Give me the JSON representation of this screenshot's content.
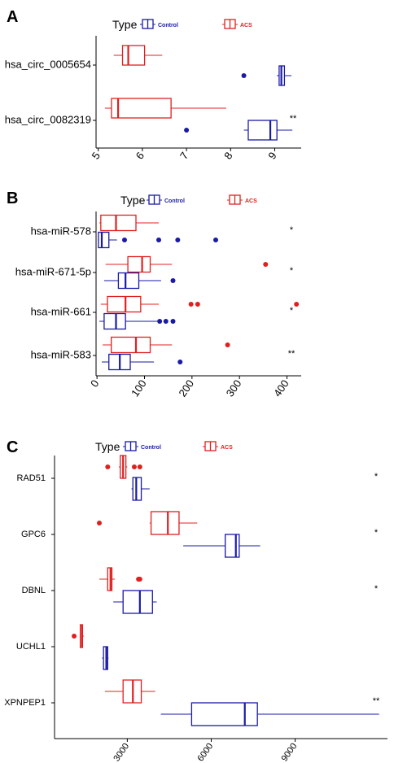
{
  "colors": {
    "control": "#1a1aa6",
    "acs": "#e02020"
  },
  "chart_data": [
    {
      "panel": "A",
      "type": "boxplot",
      "orientation": "horizontal",
      "legend": {
        "title": "Type",
        "entries": [
          "Control",
          "ACS"
        ]
      },
      "xlim": [
        4.95,
        9.6
      ],
      "ticks": [
        5,
        6,
        7,
        8,
        9
      ],
      "tick_labels": [
        "5",
        "6",
        "7",
        "8",
        "9"
      ],
      "categories": [
        {
          "label": "hsa_circ_0005654",
          "sig": "",
          "acs": {
            "whisker_low": 5.35,
            "q1": 5.55,
            "median": 5.68,
            "q3": 6.05,
            "whisker_high": 6.45,
            "outliers": []
          },
          "control": {
            "whisker_low": 9.05,
            "q1": 9.1,
            "median": 9.15,
            "q3": 9.22,
            "whisker_high": 9.38,
            "outliers": [
              8.3
            ]
          }
        },
        {
          "label": "hsa_circ_0082319",
          "sig": "**",
          "acs": {
            "whisker_low": 5.15,
            "q1": 5.3,
            "median": 5.45,
            "q3": 6.65,
            "whisker_high": 7.9,
            "outliers": []
          },
          "control": {
            "whisker_low": 8.3,
            "q1": 8.4,
            "median": 8.9,
            "q3": 9.05,
            "whisker_high": 9.4,
            "outliers": [
              7.0
            ]
          }
        }
      ]
    },
    {
      "panel": "B",
      "type": "boxplot",
      "orientation": "horizontal",
      "legend": {
        "title": "Type",
        "entries": [
          "Control",
          "ACS"
        ]
      },
      "xlim": [
        -2,
        430
      ],
      "ticks": [
        0,
        100,
        200,
        300,
        400
      ],
      "tick_labels": [
        "0",
        "100",
        "200",
        "300",
        "400"
      ],
      "categories": [
        {
          "label": "hsa-miR-578",
          "sig": "*",
          "acs": {
            "whisker_low": 5,
            "q1": 8,
            "median": 40,
            "q3": 82,
            "whisker_high": 130,
            "outliers": []
          },
          "control": {
            "whisker_low": 2,
            "q1": 3,
            "median": 10,
            "q3": 25,
            "whisker_high": 42,
            "outliers": [
              58,
              130,
              170,
              250
            ]
          }
        },
        {
          "label": "hsa-miR-671-5p",
          "sig": "*",
          "acs": {
            "whisker_low": 18,
            "q1": 65,
            "median": 95,
            "q3": 112,
            "whisker_high": 158,
            "outliers": [
              355
            ]
          },
          "control": {
            "whisker_low": 15,
            "q1": 45,
            "median": 60,
            "q3": 88,
            "whisker_high": 135,
            "outliers": [
              160
            ]
          }
        },
        {
          "label": "hsa-miR-661",
          "sig": "*",
          "acs": {
            "whisker_low": 8,
            "q1": 22,
            "median": 60,
            "q3": 92,
            "whisker_high": 130,
            "outliers": [
              198,
              212,
              420
            ]
          },
          "control": {
            "whisker_low": 5,
            "q1": 15,
            "median": 40,
            "q3": 60,
            "whisker_high": 128,
            "outliers": [
              132,
              145,
              160
            ]
          }
        },
        {
          "label": "hsa-miR-583",
          "sig": "**",
          "acs": {
            "whisker_low": 12,
            "q1": 30,
            "median": 82,
            "q3": 112,
            "whisker_high": 158,
            "outliers": [
              275
            ]
          },
          "control": {
            "whisker_low": 10,
            "q1": 25,
            "median": 48,
            "q3": 70,
            "whisker_high": 120,
            "outliers": [
              175
            ]
          }
        }
      ]
    },
    {
      "panel": "C",
      "type": "boxplot",
      "orientation": "horizontal",
      "legend": {
        "title": "Type",
        "entries": [
          "Control",
          "ACS"
        ]
      },
      "xlim": [
        400,
        12300
      ],
      "ticks": [
        3000,
        6000,
        9000
      ],
      "tick_labels": [
        "3000",
        "6000",
        "9000"
      ],
      "categories": [
        {
          "label": "RAD51",
          "sig": "*",
          "acs": {
            "whisker_low": 2700,
            "q1": 2750,
            "median": 2850,
            "q3": 2950,
            "whisker_high": 3000,
            "outliers": [
              2300,
              3250,
              3450
            ]
          },
          "control": {
            "whisker_low": 3150,
            "q1": 3200,
            "median": 3320,
            "q3": 3500,
            "whisker_high": 3800,
            "outliers": []
          }
        },
        {
          "label": "GPC6",
          "sig": "*",
          "acs": {
            "whisker_low": 3800,
            "q1": 3850,
            "median": 4450,
            "q3": 4850,
            "whisker_high": 5500,
            "outliers": [
              2000
            ]
          },
          "control": {
            "whisker_low": 5000,
            "q1": 6500,
            "median": 6880,
            "q3": 7000,
            "whisker_high": 7750,
            "outliers": []
          }
        },
        {
          "label": "DBNL",
          "sig": "*",
          "acs": {
            "whisker_low": 2000,
            "q1": 2300,
            "median": 2400,
            "q3": 2450,
            "whisker_high": 2550,
            "outliers": [
              3400,
              3450
            ]
          },
          "control": {
            "whisker_low": 2500,
            "q1": 2850,
            "median": 3450,
            "q3": 3900,
            "whisker_high": 4050,
            "outliers": []
          }
        },
        {
          "label": "UCHL1",
          "sig": "",
          "acs": {
            "whisker_low": 1300,
            "q1": 1320,
            "median": 1380,
            "q3": 1400,
            "whisker_high": 1450,
            "outliers": [
              1100
            ]
          },
          "control": {
            "whisker_low": 2100,
            "q1": 2150,
            "median": 2250,
            "q3": 2300,
            "whisker_high": 2330,
            "outliers": []
          }
        },
        {
          "label": "XPNPEP1",
          "sig": "**",
          "acs": {
            "whisker_low": 2200,
            "q1": 2850,
            "median": 3200,
            "q3": 3500,
            "whisker_high": 4000,
            "outliers": []
          },
          "control": {
            "whisker_low": 4200,
            "q1": 5300,
            "median": 7200,
            "q3": 7650,
            "whisker_high": 12000,
            "outliers": []
          }
        }
      ]
    }
  ]
}
